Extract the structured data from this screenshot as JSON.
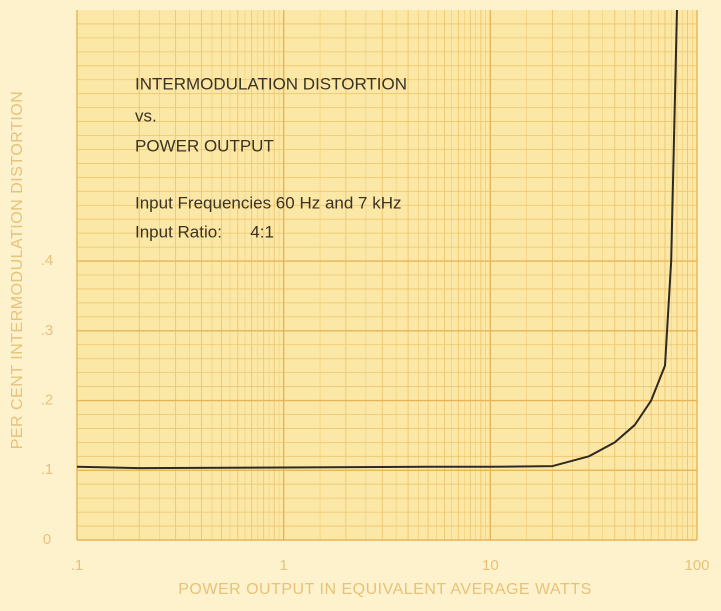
{
  "chart_data": {
    "type": "line",
    "x_label": "POWER OUTPUT IN EQUIVALENT AVERAGE WATTS",
    "y_label": "PER CENT INTERMODULATION DISTORTION",
    "annotations": [
      "INTERMODULATION DISTORTION",
      "vs.",
      "POWER OUTPUT",
      "Input Frequencies 60 Hz and 7 kHz",
      "Input Ratio:      4:1"
    ],
    "x_scale": "log",
    "xlim": [
      0.1,
      100
    ],
    "xticks": [
      {
        "value": 0.1,
        "label": ".1"
      },
      1,
      10,
      100
    ],
    "ylim": [
      0,
      0.76
    ],
    "yticks": [
      0,
      {
        "value": 0.1,
        "label": ".1"
      },
      {
        "value": 0.2,
        "label": ".2"
      },
      {
        "value": 0.3,
        "label": ".3"
      },
      {
        "value": 0.4,
        "label": ".4"
      }
    ],
    "grid": true,
    "series": [
      {
        "color": "#2e2a22",
        "x": [
          0.1,
          0.2,
          1,
          5,
          10,
          20,
          30,
          40,
          50,
          60,
          70,
          75,
          80
        ],
        "values": [
          0.105,
          0.103,
          0.104,
          0.105,
          0.105,
          0.106,
          0.12,
          0.14,
          0.165,
          0.2,
          0.25,
          0.4,
          0.76
        ]
      }
    ]
  }
}
